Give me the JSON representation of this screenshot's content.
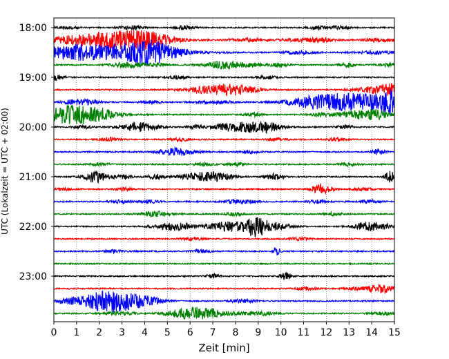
{
  "chart_data": {
    "type": "line",
    "subtype": "helicorder seismogram",
    "xlabel": "Zeit  [min]",
    "ylabel": "UTC (Lokalzeit = UTC + 02:00)",
    "xlim": [
      0,
      15
    ],
    "x_ticks": [
      "0",
      "1",
      "2",
      "3",
      "4",
      "5",
      "6",
      "7",
      "8",
      "9",
      "10",
      "11",
      "12",
      "13",
      "14",
      "15"
    ],
    "y_tick_labels": [
      "18:00",
      "19:00",
      "20:00",
      "21:00",
      "22:00",
      "23:00"
    ],
    "trace_interval_min": 15,
    "traces_per_hour": 4,
    "grid": "vertical dotted lines at each minute",
    "color_cycle": [
      "#000000",
      "#ff0000",
      "#0000ff",
      "#008000"
    ],
    "traces": [
      {
        "start": "18:00",
        "events": [
          [
            0.6,
            0.35,
            0.25
          ],
          [
            3.4,
            0.35,
            0.4
          ],
          [
            5.8,
            0.3,
            0.35
          ],
          [
            11.7,
            0.35,
            0.35
          ],
          [
            12.6,
            0.3,
            0.25
          ]
        ]
      },
      {
        "start": "18:15",
        "events": [
          [
            2.1,
            1.6,
            1.3
          ],
          [
            3.5,
            1.0,
            0.9
          ],
          [
            4.3,
            0.7,
            0.6
          ],
          [
            8.5,
            0.6,
            0.3
          ],
          [
            11.0,
            0.8,
            0.3
          ],
          [
            11.8,
            0.3,
            0.3
          ],
          [
            14.3,
            0.5,
            0.35
          ]
        ]
      },
      {
        "start": "18:30",
        "events": [
          [
            0.7,
            0.6,
            0.6
          ],
          [
            2.2,
            2.0,
            1.4
          ],
          [
            4.1,
            0.7,
            1.8
          ],
          [
            5.3,
            0.5,
            0.3
          ],
          [
            10.8,
            0.5,
            0.3
          ],
          [
            14.2,
            0.6,
            0.3
          ]
        ]
      },
      {
        "start": "18:45",
        "events": [
          [
            3.3,
            0.5,
            0.6
          ],
          [
            4.6,
            0.3,
            0.35
          ],
          [
            7.4,
            0.4,
            0.5
          ],
          [
            7.7,
            0.8,
            0.4
          ],
          [
            8.7,
            0.3,
            0.3
          ],
          [
            9.9,
            0.3,
            0.4
          ],
          [
            12.9,
            0.2,
            0.5
          ],
          [
            14.8,
            0.4,
            0.3
          ]
        ]
      },
      {
        "start": "19:00",
        "events": [
          [
            0.1,
            0.25,
            0.6
          ],
          [
            5.5,
            0.3,
            0.3
          ],
          [
            9.4,
            0.3,
            0.3
          ]
        ]
      },
      {
        "start": "19:15",
        "events": [
          [
            7.3,
            0.9,
            1.0
          ],
          [
            8.3,
            0.5,
            0.4
          ],
          [
            14.4,
            0.7,
            0.8
          ],
          [
            14.9,
            0.25,
            0.6
          ]
        ]
      },
      {
        "start": "19:30",
        "events": [
          [
            0.9,
            0.4,
            0.45
          ],
          [
            1.6,
            0.3,
            0.35
          ],
          [
            4.3,
            0.3,
            0.3
          ],
          [
            6.6,
            0.3,
            0.3
          ],
          [
            7.5,
            0.3,
            0.3
          ],
          [
            11.3,
            0.7,
            0.45
          ],
          [
            12.3,
            1.2,
            1.0
          ],
          [
            13.9,
            1.3,
            1.2
          ],
          [
            14.8,
            0.3,
            1.6
          ]
        ]
      },
      {
        "start": "19:45",
        "events": [
          [
            0.5,
            1.2,
            1.4
          ],
          [
            1.3,
            0.8,
            0.7
          ],
          [
            2.0,
            0.5,
            0.4
          ],
          [
            8.8,
            0.3,
            0.35
          ],
          [
            11.8,
            0.4,
            0.3
          ],
          [
            13.6,
            0.7,
            0.9
          ],
          [
            14.3,
            0.3,
            0.5
          ]
        ]
      },
      {
        "start": "20:00",
        "events": [
          [
            1.3,
            0.3,
            0.3
          ],
          [
            3.7,
            0.6,
            0.9
          ],
          [
            6.3,
            0.3,
            0.35
          ],
          [
            7.5,
            0.3,
            0.3
          ],
          [
            8.5,
            0.8,
            1.0
          ],
          [
            9.4,
            0.4,
            0.55
          ],
          [
            12.8,
            0.25,
            0.4
          ]
        ]
      },
      {
        "start": "20:15",
        "events": [
          [
            2.4,
            0.3,
            0.35
          ],
          [
            5.6,
            0.3,
            0.3
          ],
          [
            9.8,
            0.3,
            0.3
          ],
          [
            12.5,
            0.3,
            0.3
          ]
        ]
      },
      {
        "start": "20:30",
        "events": [
          [
            5.4,
            0.55,
            0.8
          ],
          [
            8.6,
            0.3,
            0.3
          ],
          [
            14.3,
            0.2,
            0.6
          ]
        ]
      },
      {
        "start": "20:45",
        "events": [
          [
            2.0,
            0.3,
            0.3
          ],
          [
            6.6,
            0.3,
            0.3
          ],
          [
            8.0,
            0.3,
            0.3
          ],
          [
            13.0,
            0.3,
            0.3
          ]
        ]
      },
      {
        "start": "21:00",
        "events": [
          [
            1.8,
            0.35,
            1.2
          ],
          [
            3.0,
            0.3,
            0.4
          ],
          [
            4.5,
            0.3,
            0.5
          ],
          [
            6.2,
            0.5,
            0.7
          ],
          [
            7.2,
            0.5,
            0.8
          ],
          [
            9.7,
            0.3,
            0.6
          ],
          [
            14.9,
            0.2,
            1.3
          ]
        ]
      },
      {
        "start": "21:15",
        "events": [
          [
            0.4,
            0.3,
            0.3
          ],
          [
            3.1,
            0.3,
            0.3
          ],
          [
            11.8,
            0.35,
            0.9
          ],
          [
            13.6,
            0.3,
            0.3
          ]
        ]
      },
      {
        "start": "21:30",
        "events": [
          [
            2.9,
            0.3,
            0.3
          ],
          [
            4.2,
            0.3,
            0.3
          ],
          [
            7.9,
            0.3,
            0.3
          ],
          [
            8.6,
            0.3,
            0.3
          ],
          [
            11.6,
            0.3,
            0.3
          ],
          [
            13.9,
            0.3,
            0.3
          ]
        ]
      },
      {
        "start": "21:45",
        "events": [
          [
            4.5,
            0.5,
            0.5
          ],
          [
            8.0,
            0.3,
            0.3
          ],
          [
            12.3,
            0.3,
            0.3
          ]
        ]
      },
      {
        "start": "22:00",
        "events": [
          [
            5.3,
            0.6,
            0.8
          ],
          [
            7.4,
            0.5,
            0.7
          ],
          [
            8.3,
            0.5,
            0.75
          ],
          [
            8.9,
            0.3,
            1.5
          ],
          [
            9.6,
            0.5,
            0.8
          ],
          [
            13.8,
            0.4,
            0.9
          ],
          [
            14.6,
            0.3,
            0.4
          ]
        ]
      },
      {
        "start": "22:15",
        "events": [
          [
            6.1,
            0.3,
            0.3
          ],
          [
            10.8,
            0.3,
            0.3
          ]
        ]
      },
      {
        "start": "22:30",
        "events": [
          [
            2.6,
            0.3,
            0.3
          ],
          [
            6.5,
            0.3,
            0.3
          ],
          [
            9.8,
            0.1,
            0.8
          ]
        ]
      },
      {
        "start": "22:45",
        "events": []
      },
      {
        "start": "23:00",
        "events": [
          [
            7.0,
            0.2,
            0.5
          ],
          [
            10.2,
            0.2,
            0.7
          ]
        ]
      },
      {
        "start": "23:15",
        "events": [
          [
            11.1,
            0.3,
            0.3
          ],
          [
            13.7,
            0.5,
            0.4
          ],
          [
            14.5,
            0.4,
            0.7
          ]
        ]
      },
      {
        "start": "23:30",
        "events": [
          [
            1.0,
            0.8,
            0.6
          ],
          [
            2.3,
            0.6,
            1.4
          ],
          [
            3.1,
            0.8,
            1.2
          ],
          [
            4.0,
            0.6,
            0.5
          ],
          [
            8.3,
            0.4,
            0.35
          ]
        ]
      },
      {
        "start": "23:45",
        "events": [
          [
            2.9,
            0.5,
            0.3
          ],
          [
            5.8,
            0.6,
            0.9
          ],
          [
            6.6,
            0.5,
            0.45
          ],
          [
            7.2,
            1.0,
            0.4
          ],
          [
            9.2,
            0.4,
            0.3
          ],
          [
            14.5,
            0.4,
            0.3
          ]
        ]
      }
    ]
  }
}
